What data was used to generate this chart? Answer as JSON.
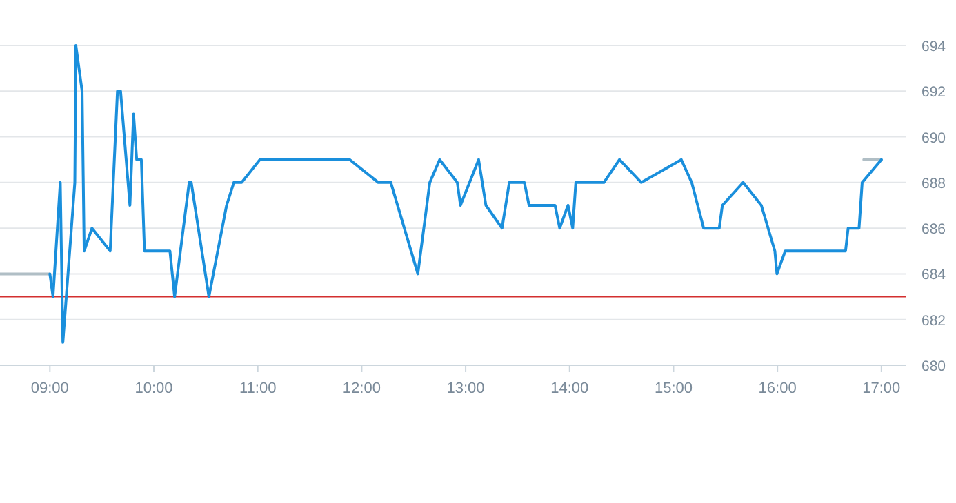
{
  "chart_data": {
    "type": "line",
    "xlim": [
      8.52,
      17.24
    ],
    "ylim": [
      680,
      694
    ],
    "xticks": [
      {
        "value": 9,
        "label": "09:00"
      },
      {
        "value": 10,
        "label": "10:00"
      },
      {
        "value": 11,
        "label": "11:00"
      },
      {
        "value": 12,
        "label": "12:00"
      },
      {
        "value": 13,
        "label": "13:00"
      },
      {
        "value": 14,
        "label": "14:00"
      },
      {
        "value": 15,
        "label": "15:00"
      },
      {
        "value": 16,
        "label": "16:00"
      },
      {
        "value": 17,
        "label": "17:00"
      }
    ],
    "yticks": [
      680,
      682,
      684,
      686,
      688,
      690,
      692,
      694
    ],
    "grid": "y",
    "marker": "none",
    "line_style": "solid",
    "ref_lines": [
      {
        "axis": "y",
        "value": 683,
        "color": "#d32f2f"
      }
    ],
    "series": [
      {
        "color": "#1a8fdc",
        "x": [
          9.0,
          9.03,
          9.1,
          9.125,
          9.24,
          9.25,
          9.31,
          9.33,
          9.405,
          9.58,
          9.65,
          9.68,
          9.77,
          9.805,
          9.835,
          9.88,
          9.91,
          10.155,
          10.2,
          10.34,
          10.36,
          10.53,
          10.7,
          10.77,
          10.845,
          11.02,
          11.885,
          12.16,
          12.28,
          12.54,
          12.655,
          12.75,
          12.92,
          12.95,
          13.125,
          13.195,
          13.35,
          13.42,
          13.565,
          13.61,
          13.86,
          13.905,
          13.985,
          14.03,
          14.06,
          14.33,
          14.48,
          14.69,
          15.075,
          15.175,
          15.29,
          15.44,
          15.47,
          15.67,
          15.845,
          15.975,
          15.995,
          16.075,
          16.655,
          16.68,
          16.785,
          16.815,
          17.0
        ],
        "values": [
          684,
          683,
          688,
          681,
          688,
          694,
          692,
          685,
          686,
          685,
          692,
          692,
          687,
          691,
          689,
          689,
          685,
          685,
          683,
          688,
          688,
          683,
          687,
          688,
          688,
          689,
          689,
          688,
          688,
          684,
          688,
          689,
          688,
          687,
          689,
          687,
          686,
          688,
          688,
          687,
          687,
          686,
          687,
          686,
          688,
          688,
          689,
          688,
          689,
          688,
          686,
          686,
          687,
          688,
          687,
          685,
          684,
          685,
          685,
          686,
          686,
          688,
          689
        ]
      },
      {
        "color": "#b0bec5",
        "x": [
          8.52,
          9.0,
          9.01,
          16.83,
          17.0
        ],
        "values": [
          684,
          684,
          null,
          689,
          689
        ]
      }
    ]
  }
}
